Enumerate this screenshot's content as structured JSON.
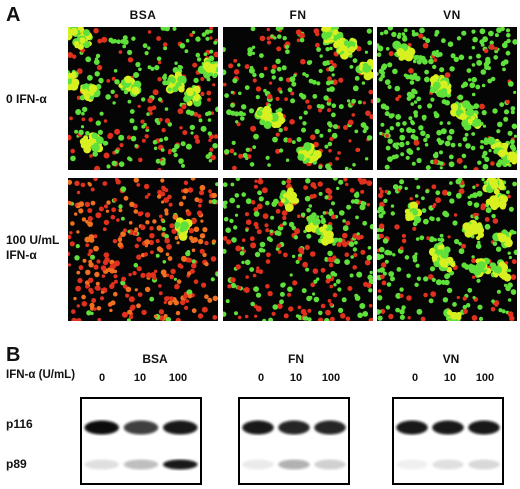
{
  "panel_a": {
    "letter": "A",
    "columns": [
      "BSA",
      "FN",
      "VN"
    ],
    "rows": [
      [
        "0 IFN-α"
      ],
      [
        "100 U/mL",
        "IFN-α"
      ]
    ]
  },
  "panel_b": {
    "letter": "B",
    "header_label": "IFN-α (U/mL)",
    "blots": [
      {
        "name": "BSA",
        "lanes": [
          "0",
          "10",
          "100"
        ],
        "p116": [
          0.95,
          0.75,
          0.9
        ],
        "p89": [
          0.12,
          0.25,
          0.9
        ]
      },
      {
        "name": "FN",
        "lanes": [
          "0",
          "10",
          "100"
        ],
        "p116": [
          0.9,
          0.85,
          0.85
        ],
        "p89": [
          0.08,
          0.3,
          0.18
        ]
      },
      {
        "name": "VN",
        "lanes": [
          "0",
          "10",
          "100"
        ],
        "p116": [
          0.9,
          0.9,
          0.9
        ],
        "p89": [
          0.06,
          0.12,
          0.15
        ]
      }
    ],
    "bands": [
      "p116",
      "p89"
    ]
  },
  "colors": {
    "green": "#5fe03a",
    "yellow": "#d8f020",
    "red": "#e0301e",
    "orange": "#f07020",
    "background": "#050505"
  }
}
